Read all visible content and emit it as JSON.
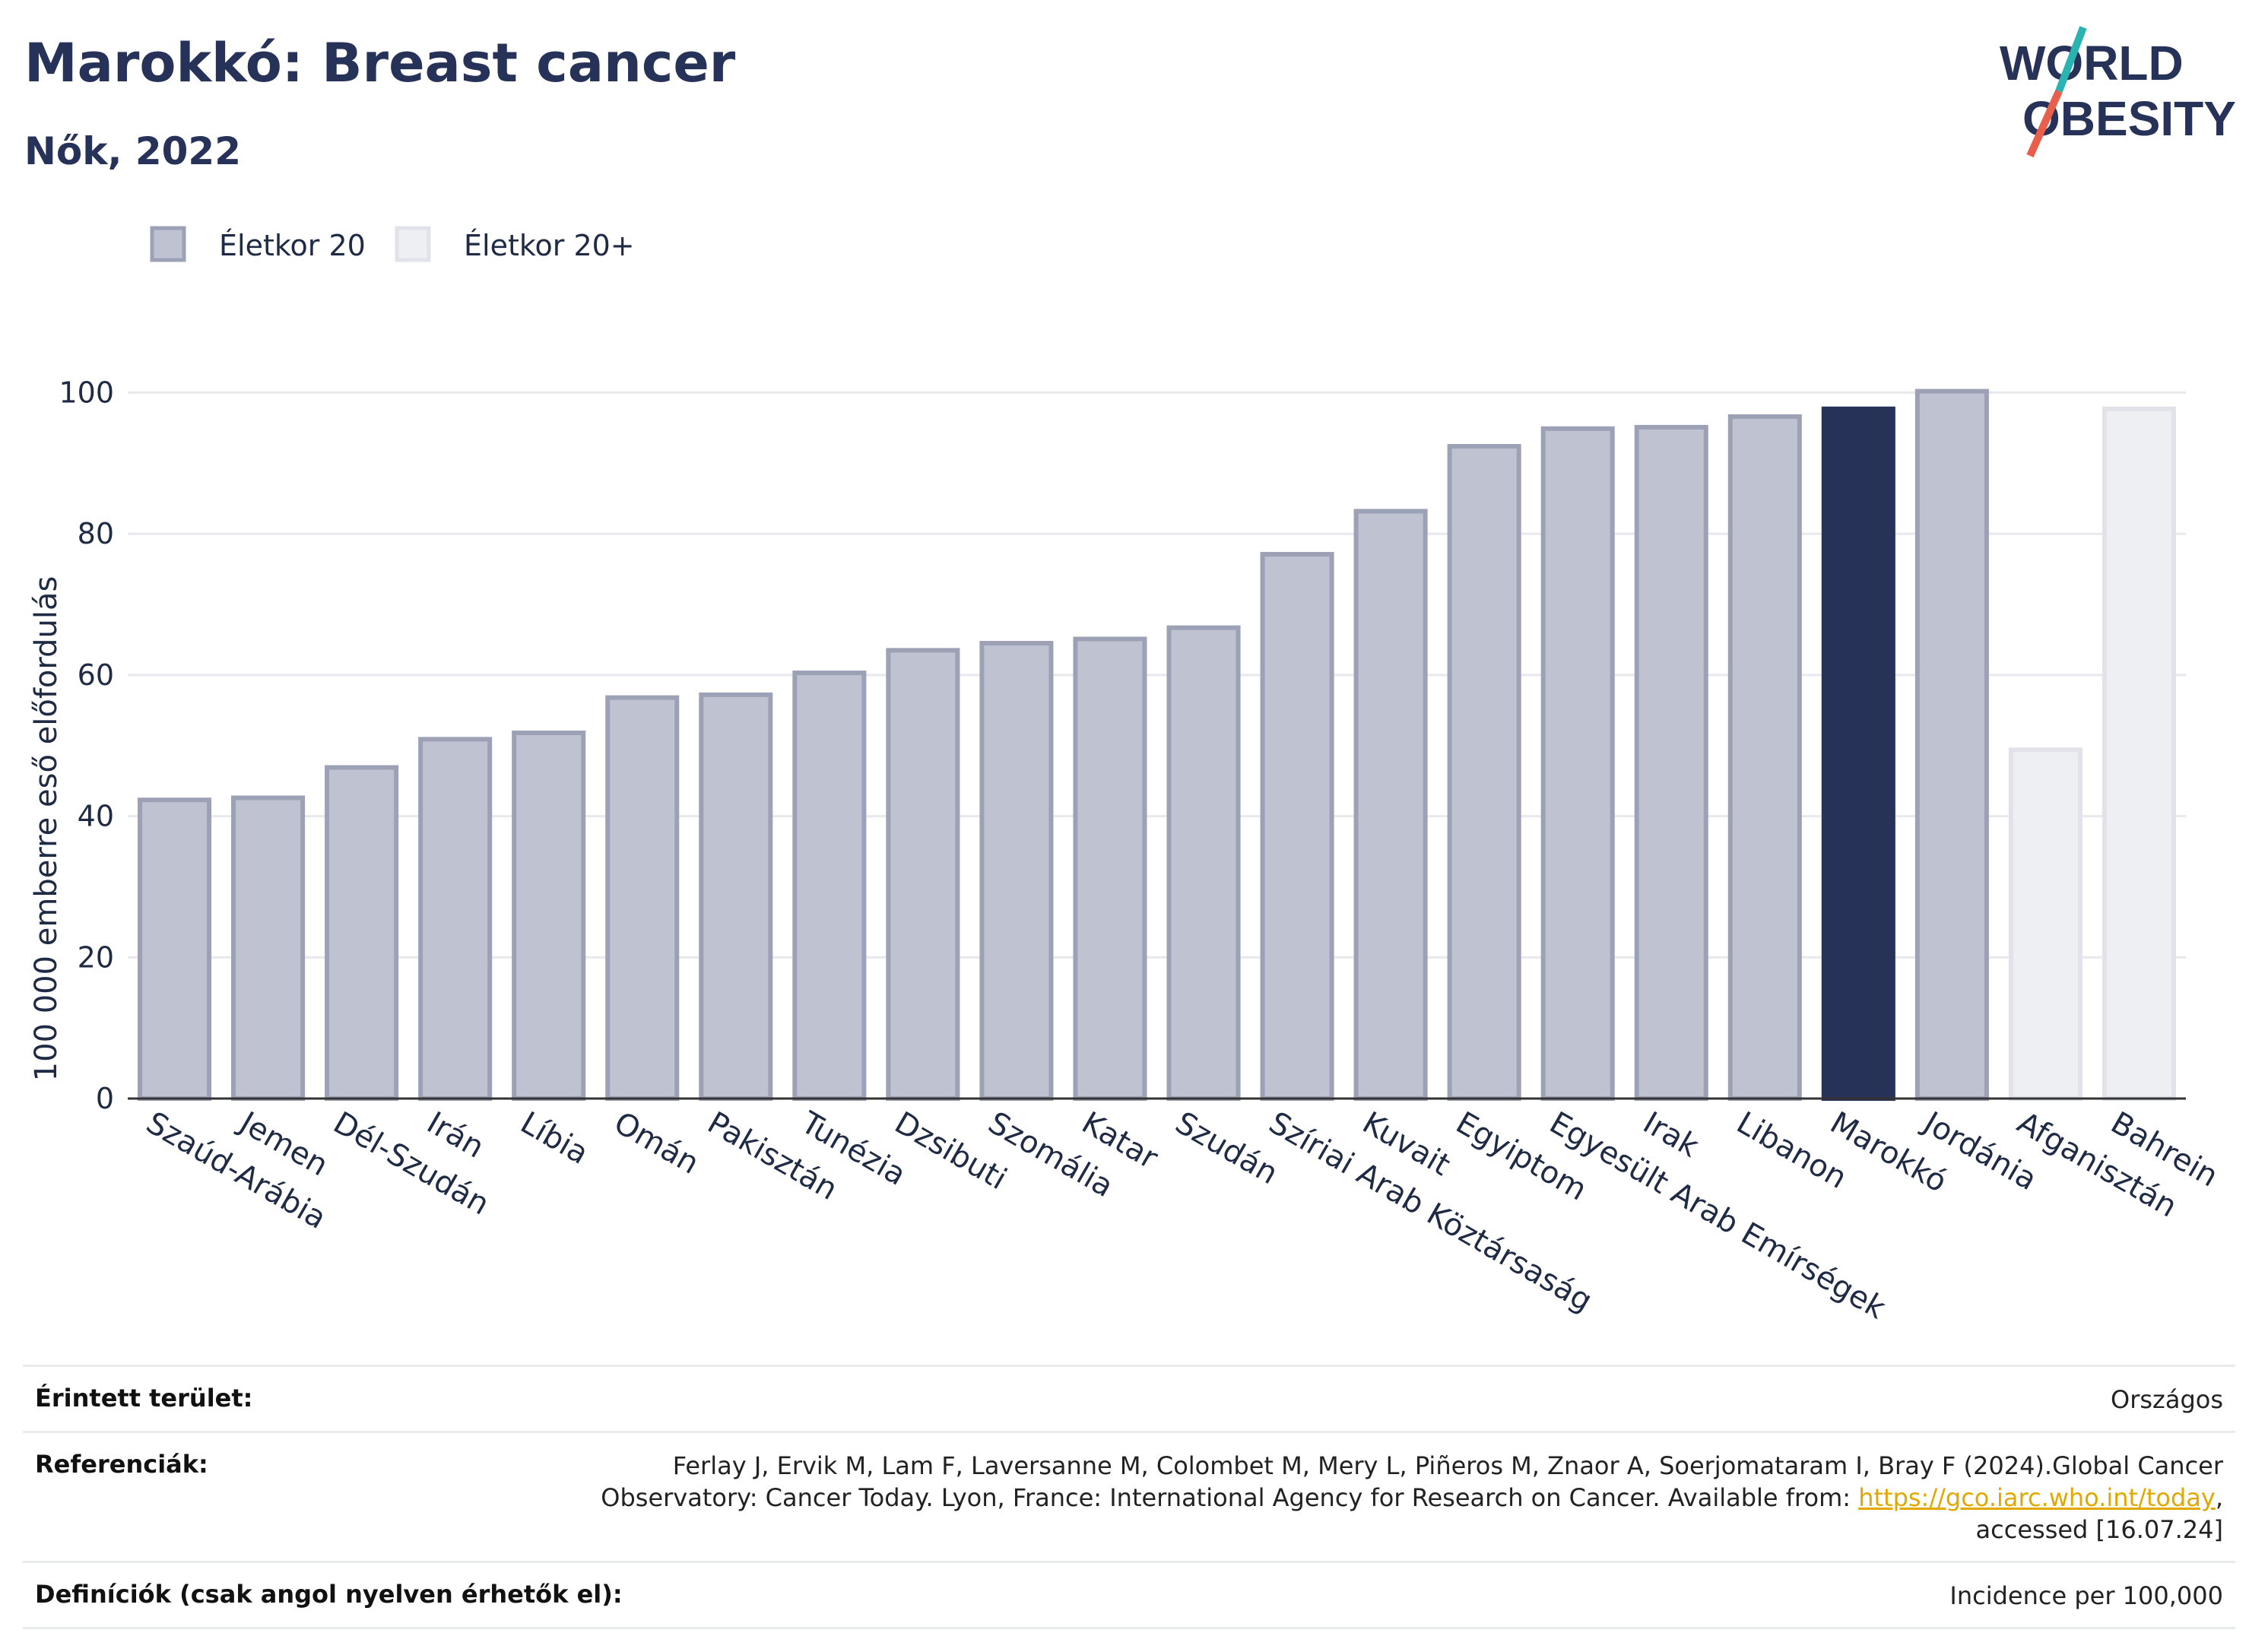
{
  "header": {
    "title": "Marokkó: Breast cancer",
    "subtitle": "Nők, 2022"
  },
  "logo": {
    "line1": "WORLD",
    "line2": "OBESITY",
    "colors": {
      "text": "#273259",
      "slash_top": "#2bb3b1",
      "slash_bottom": "#e8604c"
    }
  },
  "colors": {
    "age20": "#bfc2d0",
    "age20_border": "#9da1b6",
    "age20plus": "#eeeff3",
    "age20plus_border": "#e2e3ea",
    "highlight": "#273259",
    "grid": "#e8e8ee",
    "axis": "#333333"
  },
  "chart_data": {
    "type": "bar",
    "title": "Marokkó: Breast cancer",
    "ylabel": "100 000 emberre eső előfordulás",
    "xlabel": "",
    "ylim": [
      0,
      105
    ],
    "yticks": [
      0,
      20,
      40,
      60,
      80,
      100
    ],
    "grid": true,
    "legend_position": "top-left",
    "legend": [
      {
        "name": "Életkor 20",
        "key": "age20"
      },
      {
        "name": "Életkor 20+",
        "key": "age20plus"
      }
    ],
    "highlight": "Marokkó",
    "categories": [
      "Szaúd-Arábia",
      "Jemen",
      "Dél-Szudán",
      "Irán",
      "Líbia",
      "Omán",
      "Pakisztán",
      "Tunézia",
      "Dzsibuti",
      "Szomália",
      "Katar",
      "Szudán",
      "Szíriai Arab Köztársaság",
      "Kuvait",
      "Egyiptom",
      "Egyesült Arab Emírségek",
      "Irak",
      "Libanon",
      "Marokkó",
      "Jordánia",
      "Afganisztán",
      "Bahrein"
    ],
    "values": [
      42.3,
      42.6,
      46.9,
      50.9,
      51.8,
      56.8,
      57.2,
      60.3,
      63.5,
      64.5,
      65.1,
      66.7,
      77.1,
      83.2,
      92.4,
      94.9,
      95.1,
      96.6,
      97.7,
      100.2,
      49.4,
      97.7
    ],
    "groups": [
      "age20",
      "age20",
      "age20",
      "age20",
      "age20",
      "age20",
      "age20",
      "age20",
      "age20",
      "age20",
      "age20",
      "age20",
      "age20",
      "age20",
      "age20",
      "age20",
      "age20",
      "age20",
      "age20",
      "age20",
      "age20plus",
      "age20plus"
    ]
  },
  "footer": {
    "area_label": "Érintett terület:",
    "area_value": "Országos",
    "ref_label": "Referenciák:",
    "ref_text_1": "Ferlay J, Ervik M, Lam F, Laversanne M, Colombet M, Mery L, Piñeros M, Znaor A, Soerjomataram I, Bray F (2024).Global Cancer Observatory: Cancer Today. Lyon, France: International Agency for Research on Cancer. Available from: ",
    "ref_link": "https://gco.iarc.who.int/today",
    "ref_text_2": ", accessed [16.07.24]",
    "def_label": "Definíciók (csak angol nyelven érhetők el):",
    "def_value": "Incidence per 100,000"
  }
}
